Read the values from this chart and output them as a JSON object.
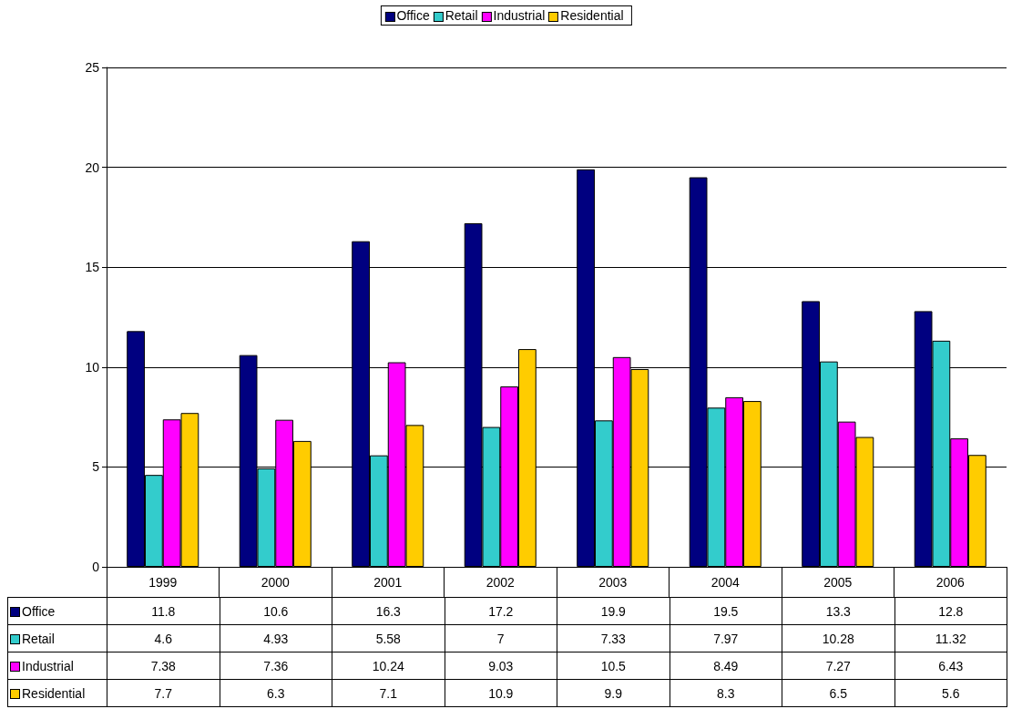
{
  "chart_data": {
    "type": "bar",
    "categories": [
      "1999",
      "2000",
      "2001",
      "2002",
      "2003",
      "2004",
      "2005",
      "2006"
    ],
    "series": [
      {
        "name": "Office",
        "color": "#000080",
        "values": [
          11.8,
          10.6,
          16.3,
          17.2,
          19.9,
          19.5,
          13.3,
          12.8
        ]
      },
      {
        "name": "Retail",
        "color": "#33cccc",
        "values": [
          4.6,
          4.93,
          5.58,
          7,
          7.33,
          7.97,
          10.28,
          11.32
        ]
      },
      {
        "name": "Industrial",
        "color": "#ff00ff",
        "values": [
          7.38,
          7.36,
          10.24,
          9.03,
          10.5,
          8.49,
          7.27,
          6.43
        ]
      },
      {
        "name": "Residential",
        "color": "#ffcc00",
        "values": [
          7.7,
          6.3,
          7.1,
          10.9,
          9.9,
          8.3,
          6.5,
          5.6
        ]
      }
    ],
    "ylim": [
      0,
      25
    ],
    "yticks": [
      0,
      5,
      10,
      15,
      20,
      25
    ],
    "grid": "y",
    "legend": "top",
    "data_labels": true
  }
}
